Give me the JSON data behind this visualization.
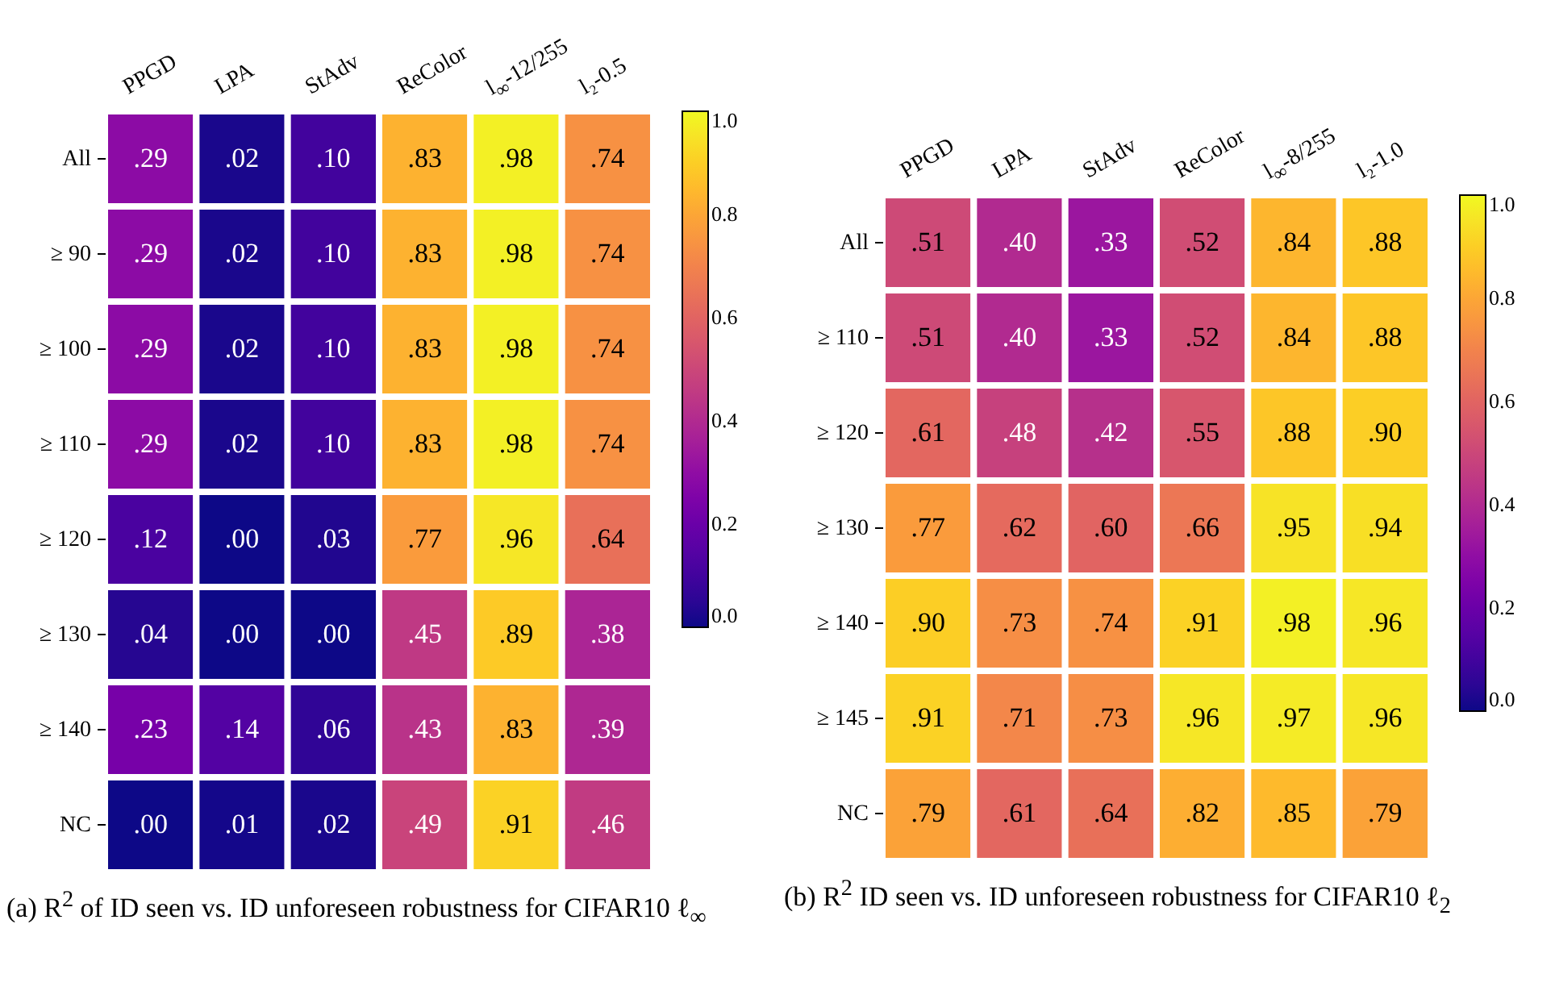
{
  "chart_data": [
    {
      "type": "heatmap",
      "categories": [
        "PPGD",
        "LPA",
        "StAdv",
        "ReColor",
        "l$_{∞}$-12/255",
        "l₂-0.5"
      ],
      "y_categories": [
        "All",
        "≥ 90",
        "≥ 100",
        "≥ 110",
        "≥ 120",
        "≥ 130",
        "≥ 140",
        "NC"
      ],
      "cells": [
        [
          0.29,
          0.02,
          0.1,
          0.83,
          0.98,
          0.74
        ],
        [
          0.29,
          0.02,
          0.1,
          0.83,
          0.98,
          0.74
        ],
        [
          0.29,
          0.02,
          0.1,
          0.83,
          0.98,
          0.74
        ],
        [
          0.29,
          0.02,
          0.1,
          0.83,
          0.98,
          0.74
        ],
        [
          0.12,
          0.0,
          0.03,
          0.77,
          0.96,
          0.64
        ],
        [
          0.04,
          0.0,
          0.0,
          0.45,
          0.89,
          0.38
        ],
        [
          0.23,
          0.14,
          0.06,
          0.43,
          0.83,
          0.39
        ],
        [
          0.0,
          0.01,
          0.02,
          0.49,
          0.91,
          0.46
        ]
      ],
      "cell_labels": [
        [
          ".29",
          ".02",
          ".10",
          ".83",
          ".98",
          ".74"
        ],
        [
          ".29",
          ".02",
          ".10",
          ".83",
          ".98",
          ".74"
        ],
        [
          ".29",
          ".02",
          ".10",
          ".83",
          ".98",
          ".74"
        ],
        [
          ".29",
          ".02",
          ".10",
          ".83",
          ".98",
          ".74"
        ],
        [
          ".12",
          ".00",
          ".03",
          ".77",
          ".96",
          ".64"
        ],
        [
          ".04",
          ".00",
          ".00",
          ".45",
          ".89",
          ".38"
        ],
        [
          ".23",
          ".14",
          ".06",
          ".43",
          ".83",
          ".39"
        ],
        [
          ".00",
          ".01",
          ".02",
          ".49",
          ".91",
          ".46"
        ]
      ],
      "clim": [
        0,
        1
      ],
      "cticks": [
        {
          "value": 0,
          "label": "0.0"
        },
        {
          "value": 0.2,
          "label": "0.2"
        },
        {
          "value": 0.4,
          "label": "0.4"
        },
        {
          "value": 0.6,
          "label": "0.6"
        },
        {
          "value": 0.8,
          "label": "0.8"
        },
        {
          "value": 1,
          "label": "1.0"
        }
      ],
      "annotations": [
        "(a) R$^{2}$ of ID seen vs. ID unforeseen robustness for CIFAR10 ℓ$_{∞}$"
      ]
    },
    {
      "type": "heatmap",
      "categories": [
        "PPGD",
        "LPA",
        "StAdv",
        "ReColor",
        "l$_{∞}$-8/255",
        "l₂-1.0"
      ],
      "y_categories": [
        "All",
        "≥ 110",
        "≥ 120",
        "≥ 130",
        "≥ 140",
        "≥ 145",
        "NC"
      ],
      "cells": [
        [
          0.51,
          0.4,
          0.33,
          0.52,
          0.84,
          0.88
        ],
        [
          0.51,
          0.4,
          0.33,
          0.52,
          0.84,
          0.88
        ],
        [
          0.61,
          0.48,
          0.42,
          0.55,
          0.88,
          0.9
        ],
        [
          0.77,
          0.62,
          0.6,
          0.66,
          0.95,
          0.94
        ],
        [
          0.9,
          0.73,
          0.74,
          0.91,
          0.98,
          0.96
        ],
        [
          0.91,
          0.71,
          0.73,
          0.96,
          0.97,
          0.96
        ],
        [
          0.79,
          0.61,
          0.64,
          0.82,
          0.85,
          0.79
        ]
      ],
      "cell_labels": [
        [
          ".51",
          ".40",
          ".33",
          ".52",
          ".84",
          ".88"
        ],
        [
          ".51",
          ".40",
          ".33",
          ".52",
          ".84",
          ".88"
        ],
        [
          ".61",
          ".48",
          ".42",
          ".55",
          ".88",
          ".90"
        ],
        [
          ".77",
          ".62",
          ".60",
          ".66",
          ".95",
          ".94"
        ],
        [
          ".90",
          ".73",
          ".74",
          ".91",
          ".98",
          ".96"
        ],
        [
          ".91",
          ".71",
          ".73",
          ".96",
          ".97",
          ".96"
        ],
        [
          ".79",
          ".61",
          ".64",
          ".82",
          ".85",
          ".79"
        ]
      ],
      "clim": [
        0,
        1
      ],
      "cticks": [
        {
          "value": 0,
          "label": "0.0"
        },
        {
          "value": 0.2,
          "label": "0.2"
        },
        {
          "value": 0.4,
          "label": "0.4"
        },
        {
          "value": 0.6,
          "label": "0.6"
        },
        {
          "value": 0.8,
          "label": "0.8"
        },
        {
          "value": 1,
          "label": "1.0"
        }
      ],
      "annotations": [
        "(b) R$^{2}$ ID seen vs. ID unforeseen robustness for CIFAR10 ℓ$_{2}$"
      ]
    }
  ]
}
